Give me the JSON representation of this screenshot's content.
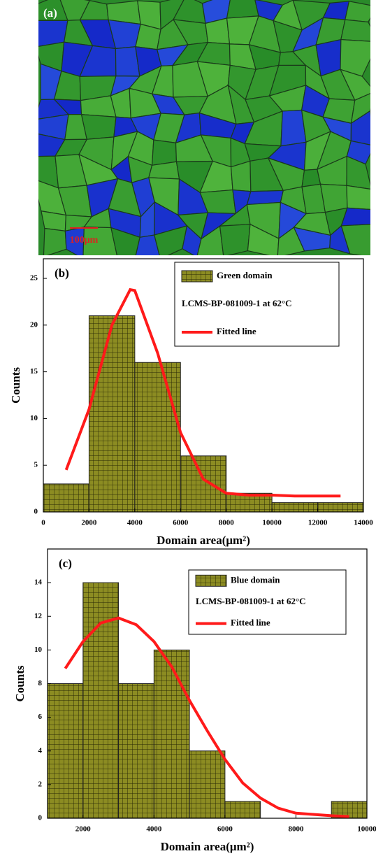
{
  "image": {
    "label": "(a)",
    "scale_bar": "100μm"
  },
  "chart_data": [
    {
      "type": "histogram",
      "title": "(b)",
      "xlabel": "Domain area(μm²)",
      "ylabel": "Counts",
      "annotation": "LCMS-BP-081009-1 at 62°C",
      "bins": [
        0,
        2000,
        4000,
        6000,
        8000,
        10000,
        12000,
        14000
      ],
      "series": [
        {
          "name": "Green domain",
          "color": "#8c8c22",
          "values": [
            3,
            21,
            16,
            6,
            2,
            1,
            1
          ]
        },
        {
          "name": "Fitted line",
          "color": "#ff1a1a",
          "type": "line",
          "x": [
            1000,
            2000,
            3000,
            3800,
            4000,
            5000,
            6000,
            7000,
            8000,
            9000,
            10000,
            11000,
            12000,
            13000
          ],
          "values": [
            4.5,
            11,
            20,
            23.8,
            23.7,
            17,
            8.5,
            3.5,
            2,
            1.8,
            1.8,
            1.7,
            1.7,
            1.7
          ]
        }
      ],
      "xlim": [
        0,
        14000
      ],
      "xticks": [
        0,
        2000,
        4000,
        6000,
        8000,
        10000,
        12000,
        14000
      ],
      "ylim": [
        0,
        27.1
      ],
      "yticks": [
        0,
        5,
        10,
        15,
        20,
        25
      ]
    },
    {
      "type": "histogram",
      "title": "(c)",
      "xlabel": "Domain area(μm²)",
      "ylabel": "Counts",
      "annotation": "LCMS-BP-081009-1 at 62°C",
      "bins": [
        1000,
        2000,
        3000,
        4000,
        5000,
        6000,
        7000,
        8000,
        9000,
        10000
      ],
      "series": [
        {
          "name": "Blue domain",
          "color": "#8c8c22",
          "values": [
            8,
            14,
            8,
            10,
            4,
            1,
            0,
            0,
            1
          ]
        },
        {
          "name": "Fitted line",
          "color": "#ff1a1a",
          "type": "line",
          "x": [
            1500,
            2000,
            2500,
            3000,
            3500,
            4000,
            4500,
            5000,
            5500,
            6000,
            6500,
            7000,
            7500,
            8000,
            9000,
            9500
          ],
          "values": [
            8.9,
            10.5,
            11.6,
            11.9,
            11.5,
            10.5,
            9,
            7,
            5.2,
            3.5,
            2.1,
            1.2,
            0.6,
            0.3,
            0.15,
            0.1
          ]
        }
      ],
      "xlim": [
        1000,
        10000
      ],
      "xticks": [
        2000,
        4000,
        6000,
        8000,
        10000
      ],
      "ylim": [
        0,
        16
      ],
      "yticks": [
        0,
        2,
        4,
        6,
        8,
        10,
        12,
        14
      ]
    }
  ]
}
